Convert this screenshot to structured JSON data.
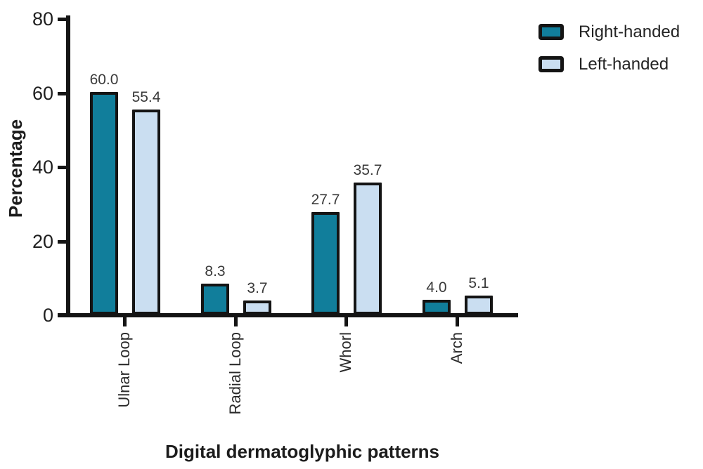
{
  "chart_data": {
    "type": "bar",
    "title": "",
    "xlabel": "Digital dermatoglyphic patterns",
    "ylabel": "Percentage",
    "categories": [
      "Ulnar Loop",
      "Radial Loop",
      "Whorl",
      "Arch"
    ],
    "series": [
      {
        "name": "Right-handed",
        "color": "#117e9b",
        "values": [
          60.0,
          8.3,
          27.7,
          4.0
        ]
      },
      {
        "name": "Left-handed",
        "color": "#cadef1",
        "values": [
          55.4,
          3.7,
          35.7,
          5.1
        ]
      }
    ],
    "value_labels": {
      "Right-handed": [
        "60.0",
        "8.3",
        "27.7",
        "4.0"
      ],
      "Left-handed": [
        "55.4",
        "3.7",
        "35.7",
        "5.1"
      ]
    },
    "y_ticks": [
      "0",
      "20",
      "40",
      "60",
      "80"
    ],
    "ylim": [
      0,
      80
    ],
    "grid": false,
    "legend_position": "top-right",
    "colors": {
      "axis": "#141414",
      "bar_border": "#141414",
      "text": "#2a2a2a"
    }
  }
}
